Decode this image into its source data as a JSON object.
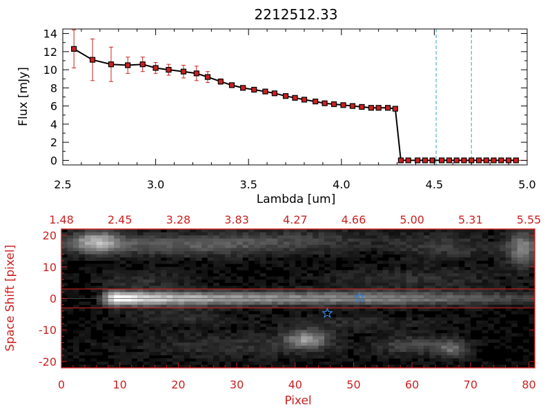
{
  "chart_data": [
    {
      "type": "line",
      "title": "2212512.33",
      "xlabel": "Lambda [um]",
      "ylabel": "Flux [mJy]",
      "xlim": [
        2.5,
        5.0
      ],
      "ylim": [
        -0.5,
        14.5
      ],
      "x_ticks": [
        "2.5",
        "3.0",
        "3.5",
        "4.0",
        "4.5",
        "5.0"
      ],
      "x_tick_values": [
        2.5,
        3.0,
        3.5,
        4.0,
        4.5,
        5.0
      ],
      "y_ticks": [
        "0",
        "2",
        "4",
        "6",
        "8",
        "10",
        "12",
        "14"
      ],
      "y_tick_values": [
        0,
        2,
        4,
        6,
        8,
        10,
        12,
        14
      ],
      "series": [
        {
          "x": [
            2.56,
            2.66,
            2.76,
            2.85,
            2.93,
            3.0,
            3.07,
            3.15,
            3.22,
            3.28,
            3.35,
            3.41,
            3.47,
            3.53,
            3.59,
            3.64,
            3.7,
            3.75,
            3.8,
            3.86,
            3.91,
            3.96,
            4.01,
            4.06,
            4.11,
            4.16,
            4.2,
            4.25,
            4.29,
            4.32,
            4.36,
            4.41,
            4.45,
            4.49,
            4.54,
            4.58,
            4.62,
            4.66,
            4.7,
            4.74,
            4.78,
            4.82,
            4.86,
            4.9,
            4.94
          ],
          "values": [
            12.3,
            11.1,
            10.6,
            10.5,
            10.6,
            10.2,
            10.0,
            9.8,
            9.6,
            9.2,
            8.7,
            8.3,
            8.0,
            7.8,
            7.6,
            7.4,
            7.1,
            6.9,
            6.7,
            6.5,
            6.3,
            6.2,
            6.1,
            6.0,
            5.9,
            5.8,
            5.8,
            5.8,
            5.7,
            0.0,
            0.0,
            0.0,
            0.0,
            0.0,
            0.0,
            0.0,
            0.0,
            0.0,
            0.0,
            0.0,
            0.0,
            0.0,
            0.0,
            0.0,
            0.0
          ],
          "errors": [
            2.1,
            2.3,
            1.9,
            0.9,
            0.8,
            0.6,
            0.6,
            0.7,
            0.8,
            0.6,
            0.3,
            0.2,
            0.2,
            0.2,
            0.2,
            0.1,
            0.1,
            0.1,
            0.1,
            0.1,
            0.1,
            0.1,
            0.1,
            0.1,
            0.1,
            0.1,
            0.1,
            0.1,
            0.1,
            0,
            0,
            0,
            0,
            0,
            0,
            0,
            0,
            0,
            0,
            0,
            0,
            0,
            0,
            0,
            0
          ],
          "line_color": "#000000",
          "marker_color": "#cc2020",
          "error_color": "#cc2020"
        }
      ],
      "vlines": [
        {
          "x": 4.51,
          "color": "#3aa3b8"
        },
        {
          "x": 4.7,
          "color": "#3aa3b8"
        }
      ],
      "hline": {
        "y": 0,
        "color": "#cc2020"
      },
      "grid": false
    },
    {
      "type": "heatmap",
      "xlabel": "Pixel",
      "ylabel": "Space Shift [pixel]",
      "xlim": [
        0,
        81
      ],
      "ylim": [
        -22,
        22
      ],
      "x_ticks": [
        "0",
        "10",
        "20",
        "30",
        "40",
        "50",
        "60",
        "70",
        "80"
      ],
      "x_tick_values": [
        0,
        10,
        20,
        30,
        40,
        50,
        60,
        70,
        80
      ],
      "y_ticks": [
        "-20",
        "-10",
        "0",
        "10",
        "20"
      ],
      "y_tick_values": [
        -20,
        -10,
        0,
        10,
        20
      ],
      "top_axis_ticks": [
        "1.48",
        "2.45",
        "3.28",
        "3.83",
        "4.27",
        "4.66",
        "5.00",
        "5.31",
        "5.55"
      ],
      "top_axis_tick_values": [
        0,
        10,
        20,
        30,
        40,
        50,
        60,
        70,
        80
      ],
      "extraction_box": [
        -3,
        3
      ],
      "trace": {
        "y": 0,
        "width": 1.6,
        "x_start": 6,
        "x_end": 81,
        "peak_x": 9,
        "peak_value": 1.0,
        "tail_value": 0.45
      },
      "sources": [
        {
          "x": 6,
          "y": 18,
          "sx": 3,
          "sy": 2.5,
          "amp": 0.55
        },
        {
          "x": 16,
          "y": 17,
          "sx": 12,
          "sy": 2.2,
          "amp": 0.22
        },
        {
          "x": 30,
          "y": 17,
          "sx": 12,
          "sy": 3,
          "amp": 0.15
        },
        {
          "x": 44,
          "y": 19,
          "sx": 12,
          "sy": 2.5,
          "amp": 0.12
        },
        {
          "x": 79,
          "y": 16,
          "sx": 2,
          "sy": 4,
          "amp": 0.45
        },
        {
          "x": 66,
          "y": 16,
          "sx": 6,
          "sy": 3,
          "amp": 0.18
        },
        {
          "x": 42,
          "y": -13,
          "sx": 2.5,
          "sy": 2,
          "amp": 0.5
        },
        {
          "x": 60,
          "y": -15,
          "sx": 4,
          "sy": 2,
          "amp": 0.25
        },
        {
          "x": 67,
          "y": -16,
          "sx": 2,
          "sy": 2,
          "amp": 0.35
        },
        {
          "x": 30,
          "y": -15,
          "sx": 14,
          "sy": 3,
          "amp": 0.14
        },
        {
          "x": 20,
          "y": -6,
          "sx": 6,
          "sy": 2,
          "amp": 0.15
        },
        {
          "x": 50,
          "y": -8,
          "sx": 10,
          "sy": 2,
          "amp": 0.12
        },
        {
          "x": 60,
          "y": 6,
          "sx": 12,
          "sy": 2.5,
          "amp": 0.14
        },
        {
          "x": 14,
          "y": 6,
          "sx": 6,
          "sy": 2,
          "amp": 0.14
        }
      ],
      "markers": [
        {
          "x": 51,
          "y": 0.3,
          "color": "#3a7fd0",
          "shape": "star"
        },
        {
          "x": 45.5,
          "y": -4.7,
          "color": "#3a7fd0",
          "shape": "star"
        }
      ],
      "colormap": "grayscale",
      "frame_color": "#cc2020"
    }
  ]
}
